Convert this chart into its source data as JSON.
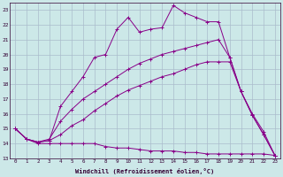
{
  "xlabel": "Windchill (Refroidissement éolien,°C)",
  "background_color": "#cce8e8",
  "grid_color": "#aabccc",
  "line_color": "#880088",
  "xlim": [
    -0.5,
    23.5
  ],
  "ylim": [
    13,
    23.5
  ],
  "yticks": [
    13,
    14,
    15,
    16,
    17,
    18,
    19,
    20,
    21,
    22,
    23
  ],
  "xticks": [
    0,
    1,
    2,
    3,
    4,
    5,
    6,
    7,
    8,
    9,
    10,
    11,
    12,
    13,
    14,
    15,
    16,
    17,
    18,
    19,
    20,
    21,
    22,
    23
  ],
  "line1_x": [
    0,
    1,
    2,
    3,
    4,
    5,
    6,
    7,
    8,
    9,
    10,
    11,
    12,
    13,
    14,
    15,
    16,
    17,
    18,
    19,
    20,
    21,
    22,
    23
  ],
  "line1_y": [
    15.0,
    14.3,
    14.0,
    14.0,
    14.0,
    14.0,
    14.0,
    14.0,
    13.8,
    13.7,
    13.7,
    13.6,
    13.5,
    13.5,
    13.5,
    13.4,
    13.4,
    13.3,
    13.3,
    13.3,
    13.3,
    13.3,
    13.3,
    13.2
  ],
  "line2_x": [
    0,
    1,
    2,
    3,
    4,
    5,
    6,
    7,
    8,
    9,
    10,
    11,
    12,
    13,
    14,
    15,
    16,
    17,
    18,
    19,
    20,
    21,
    22,
    23
  ],
  "line2_y": [
    15.0,
    14.3,
    14.1,
    14.2,
    14.6,
    15.2,
    15.6,
    16.2,
    16.7,
    17.2,
    17.6,
    17.9,
    18.2,
    18.5,
    18.7,
    19.0,
    19.3,
    19.5,
    19.5,
    19.5,
    17.5,
    16.0,
    14.8,
    13.2
  ],
  "line3_x": [
    0,
    1,
    2,
    3,
    4,
    5,
    6,
    7,
    8,
    9,
    10,
    11,
    12,
    13,
    14,
    15,
    16,
    17,
    18,
    19,
    20,
    21,
    22,
    23
  ],
  "line3_y": [
    15.0,
    14.3,
    14.1,
    14.3,
    15.5,
    16.3,
    17.0,
    17.5,
    18.0,
    18.5,
    19.0,
    19.4,
    19.7,
    20.0,
    20.2,
    20.4,
    20.6,
    20.8,
    21.0,
    19.8,
    17.5,
    15.9,
    14.6,
    13.2
  ],
  "line4_x": [
    0,
    1,
    2,
    3,
    4,
    5,
    6,
    7,
    8,
    9,
    10,
    11,
    12,
    13,
    14,
    15,
    16,
    17,
    18,
    19,
    20,
    21,
    22,
    23
  ],
  "line4_y": [
    15.0,
    14.3,
    14.1,
    14.2,
    16.5,
    17.5,
    18.5,
    19.8,
    20.0,
    21.7,
    22.5,
    21.5,
    21.7,
    21.8,
    23.3,
    22.8,
    22.5,
    22.2,
    22.2,
    19.8,
    17.5,
    15.9,
    14.6,
    13.2
  ]
}
